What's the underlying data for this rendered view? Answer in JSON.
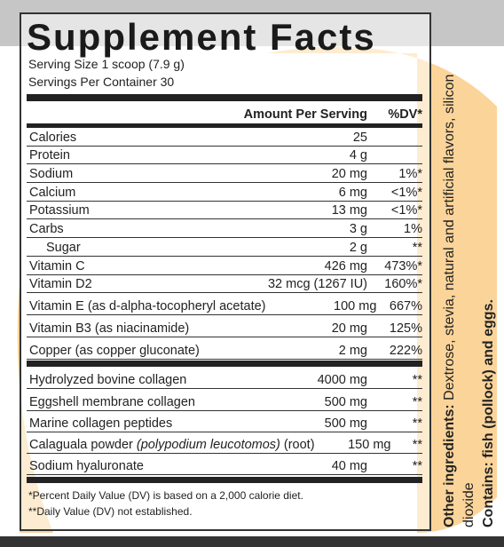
{
  "header": {
    "title": "Supplement Facts",
    "serving_size": "Serving Size 1 scoop (7.9 g)",
    "servings": "Servings Per Container 30",
    "amount_heading": "Amount Per Serving",
    "dv_heading": "%DV*"
  },
  "nutrients": [
    {
      "name": "Calories",
      "amount": "25"
    },
    {
      "name": "Protein",
      "amount": "4 g"
    },
    {
      "name": "Sodium",
      "amount": "20 mg",
      "dv": "1%*"
    },
    {
      "name": "Calcium",
      "amount": "6 mg",
      "dv": "<1%*"
    },
    {
      "name": "Potassium",
      "amount": "13 mg",
      "dv": "<1%*"
    },
    {
      "name": "Carbs",
      "amount": "3 g",
      "dv": "1%"
    },
    {
      "name": "Sugar",
      "amount": "2 g",
      "dv": "**",
      "indent": true
    },
    {
      "name": "Vitamin C",
      "amount": "426 mg",
      "dv": "473%*"
    },
    {
      "name": "Vitamin D2",
      "amount": "32 mcg (1267 IU)",
      "dv": "160%*"
    },
    {
      "name": "Vitamin E (as d-alpha-tocopheryl acetate)",
      "amount": "100 mg",
      "dv": "667%",
      "tall": true
    },
    {
      "name": "Vitamin B3 (as niacinamide)",
      "amount": "20 mg",
      "dv": "125%",
      "tall": true
    },
    {
      "name": "Copper (as copper gluconate)",
      "amount": "2 mg",
      "dv": "222%",
      "tall": true
    }
  ],
  "blends": [
    {
      "name": "Hydrolyzed bovine collagen",
      "amount": "4000 mg",
      "dv": "**"
    },
    {
      "name": "Eggshell membrane collagen",
      "amount": "500 mg",
      "dv": "**"
    },
    {
      "name": "Marine collagen peptides",
      "amount": "500 mg",
      "dv": "**"
    },
    {
      "name_parts": [
        "Calaguala powder",
        "(polypodium leucotomos)",
        "(root)"
      ],
      "italic_part": 1,
      "amount": "150 mg",
      "dv": "**"
    },
    {
      "name": "Sodium hyaluronate",
      "amount": "40 mg",
      "dv": "**"
    }
  ],
  "footnotes": [
    "*Percent Daily Value (DV) is based on a 2,000 calorie diet.",
    "**Daily Value (DV) not established."
  ],
  "side": {
    "other_ingredients_label": "Other ingredients:",
    "other_ingredients": "Dextrose, stevia, natural and artificial flavors, silicon dioxide",
    "contains_label": "Contains:",
    "contains": "fish (pollock) and eggs."
  }
}
